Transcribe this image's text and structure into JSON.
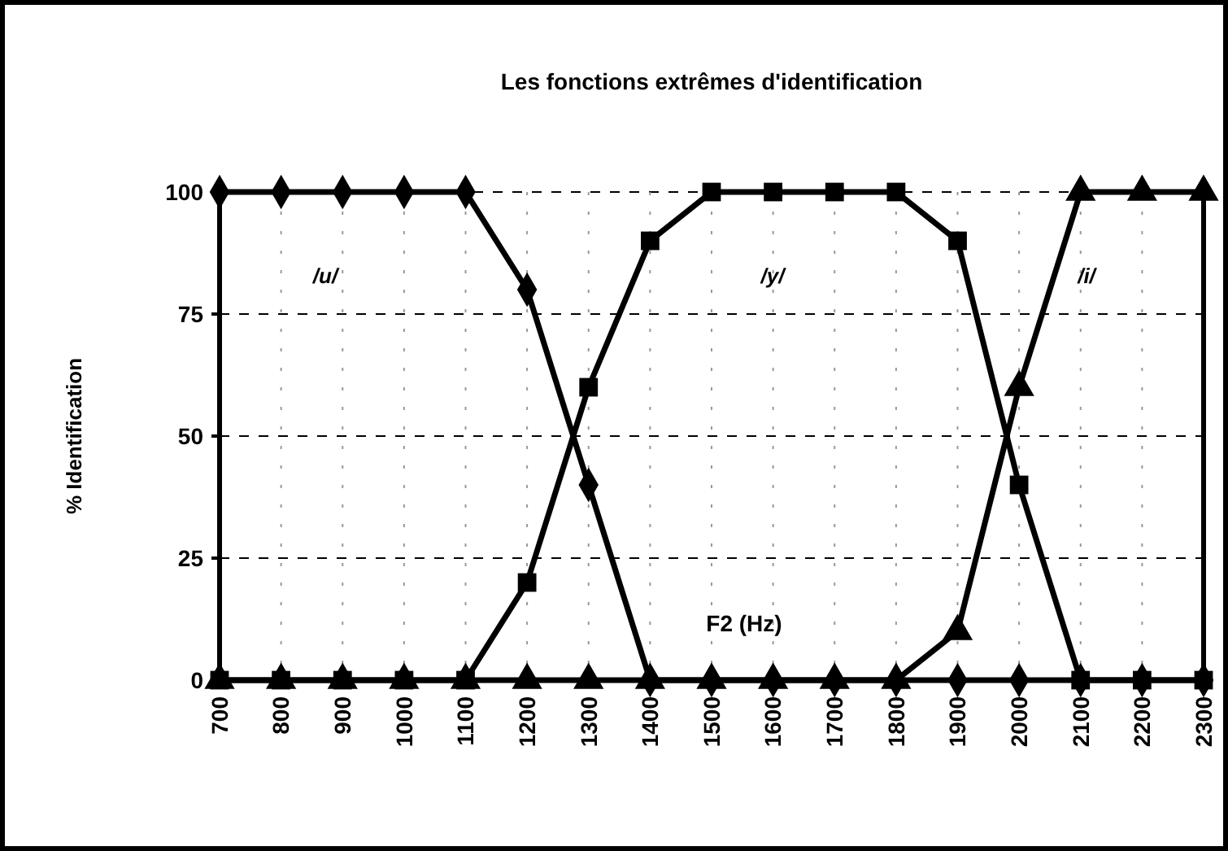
{
  "chart_data": {
    "type": "line",
    "title": "Les fonctions extrêmes d'identification",
    "xlabel": "F2 (Hz)",
    "ylabel": "% Identification",
    "x": [
      700,
      800,
      900,
      1000,
      1100,
      1200,
      1300,
      1400,
      1500,
      1600,
      1700,
      1800,
      1900,
      2000,
      2100,
      2200,
      2300
    ],
    "series": [
      {
        "color": "#000000",
        "marker": "diamond",
        "values": [
          100,
          100,
          100,
          100,
          100,
          80,
          40,
          0,
          0,
          0,
          0,
          0,
          0,
          0,
          0,
          0,
          0
        ]
      },
      {
        "color": "#000000",
        "marker": "square",
        "values": [
          0,
          0,
          0,
          0,
          0,
          20,
          60,
          90,
          100,
          100,
          100,
          100,
          90,
          40,
          0,
          0,
          0
        ]
      },
      {
        "color": "#000000",
        "marker": "triangle",
        "values": [
          0,
          0,
          0,
          0,
          0,
          0,
          0,
          0,
          0,
          0,
          0,
          0,
          10,
          60,
          100,
          100,
          100
        ]
      }
    ],
    "annotations": [
      "/u/",
      "/y/",
      "/i/"
    ],
    "xlim": [
      700,
      2300
    ],
    "xticks": [
      700,
      800,
      900,
      1000,
      1100,
      1200,
      1300,
      1400,
      1500,
      1600,
      1700,
      1800,
      1900,
      2000,
      2100,
      2200,
      2300
    ],
    "ylim": [
      0,
      100
    ],
    "yticks": [
      0,
      25,
      50,
      75,
      100
    ],
    "grid": true,
    "line_style": "solid"
  }
}
